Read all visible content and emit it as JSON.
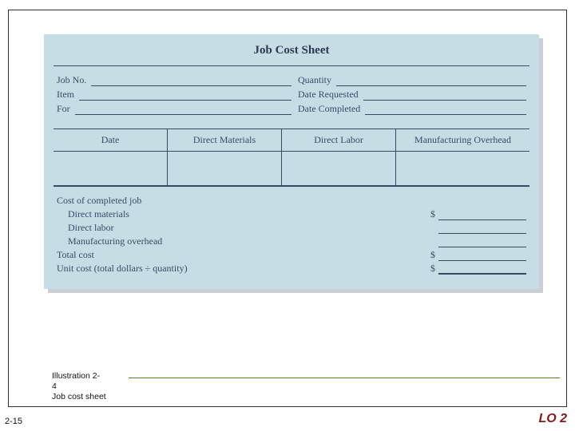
{
  "sheet": {
    "title": "Job Cost Sheet",
    "left_fields": [
      {
        "label": "Job No."
      },
      {
        "label": "Item"
      },
      {
        "label": "For"
      }
    ],
    "right_fields": [
      {
        "label": "Quantity"
      },
      {
        "label": "Date Requested"
      },
      {
        "label": "Date Completed"
      }
    ],
    "columns": [
      "Date",
      "Direct\nMaterials",
      "Direct\nLabor",
      "Manufacturing\nOverhead"
    ],
    "summary": {
      "heading": "Cost of completed job",
      "lines": [
        {
          "label": "Direct materials",
          "indent": true,
          "dollar": true,
          "bold": false
        },
        {
          "label": "Direct labor",
          "indent": true,
          "dollar": false,
          "bold": false
        },
        {
          "label": "Manufacturing overhead",
          "indent": true,
          "dollar": false,
          "bold": false
        }
      ],
      "total": {
        "label": "Total cost",
        "dollar": true,
        "bold": false
      },
      "unit": {
        "label": "Unit cost (total dollars ÷ quantity)",
        "dollar": true,
        "bold": true
      }
    }
  },
  "caption": {
    "line1": "Illustration 2-",
    "line2": "4",
    "line3": "Job cost sheet"
  },
  "footer": {
    "page": "2-15",
    "lo": "LO 2"
  },
  "colors": {
    "sheet_bg": "#c7dde6",
    "shadow": "#c9cfd2",
    "text": "#3a4a66",
    "rule": "#5a7a22",
    "lo": "#8a1a1a"
  }
}
